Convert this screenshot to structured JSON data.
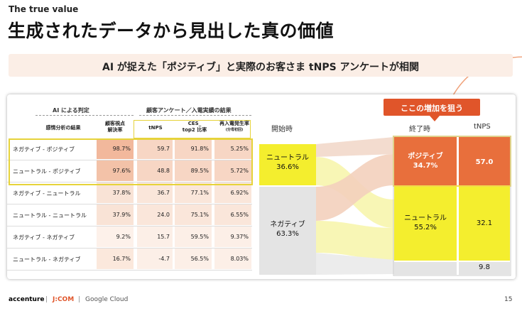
{
  "header": {
    "eyebrow": "The true value",
    "title": "生成されたデータから見出した真の価値"
  },
  "banner": {
    "text": "AI が捉えた「ポジティブ」と実際のお客さま tNPS アンケートが相関"
  },
  "table": {
    "group_ai": "AI による判定",
    "group_survey": "顧客アンケート／入電実績の結果",
    "col_result": "感情分析の結果",
    "col_rate_l1": "顧客視点",
    "col_rate_l2": "解決率",
    "col_tnps": "tNPS",
    "col_ces_l1": "CES_",
    "col_ces_l2": "top2 比率",
    "col_recall_l1": "再入電発生率",
    "col_recall_l2": "(分母初回)",
    "rows": [
      {
        "label": "ネガティブ - ポジティブ",
        "rate": "98.7%",
        "tnps": "59.7",
        "ces": "91.8%",
        "recall": "5.25%"
      },
      {
        "label": "ニュートラル - ポジティブ",
        "rate": "97.6%",
        "tnps": "48.8",
        "ces": "89.5%",
        "recall": "5.72%"
      },
      {
        "label": "ネガティブ - ニュートラル",
        "rate": "37.8%",
        "tnps": "36.7",
        "ces": "77.1%",
        "recall": "6.92%"
      },
      {
        "label": "ニュートラル - ニュートラル",
        "rate": "37.9%",
        "tnps": "24.0",
        "ces": "75.1%",
        "recall": "6.55%"
      },
      {
        "label": "ネガティブ - ネガティブ",
        "rate": "9.2%",
        "tnps": "15.7",
        "ces": "59.5%",
        "recall": "9.37%"
      },
      {
        "label": "ニュートラル - ネガティブ",
        "rate": "16.7%",
        "tnps": "-4.7",
        "ces": "56.5%",
        "recall": "8.03%"
      }
    ]
  },
  "sankey": {
    "col_start": "開始時",
    "col_end": "終了時",
    "col_tnps": "tNPS",
    "callout": "ここの増加を狙う",
    "start_neutral_label": "ニュートラル",
    "start_neutral_pct": "36.6%",
    "start_negative_label": "ネガティブ",
    "start_negative_pct": "63.3%",
    "end_positive_label": "ポジティブ",
    "end_positive_pct": "34.7%",
    "end_neutral_label": "ニュートラル",
    "end_neutral_pct": "55.2%",
    "tnps_positive": "57.0",
    "tnps_neutral": "32.1",
    "tnps_negative": "9.8"
  },
  "footer": {
    "logo_accenture": "accenture",
    "logo_jcom": "J:COM",
    "logo_google": "Google Cloud",
    "page": "15"
  },
  "colors": {
    "accent_orange": "#e0552a",
    "highlight_yellow": "#f4ee2e",
    "salmon": "#f5cdb3"
  }
}
